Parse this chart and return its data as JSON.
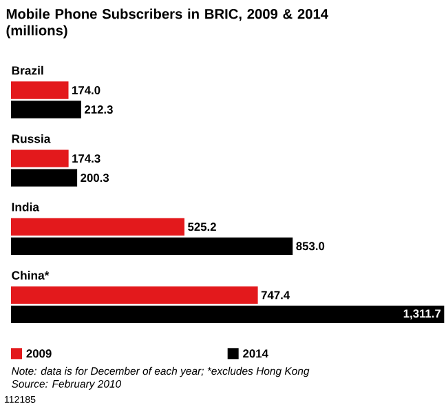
{
  "chart_data": {
    "type": "bar",
    "orientation": "horizontal",
    "title": "Mobile Phone Subscribers in BRIC, 2009 & 2014 (millions)",
    "categories": [
      "Brazil",
      "Russia",
      "India",
      "China*"
    ],
    "series": [
      {
        "name": "2009",
        "color": "#e3191c",
        "values": [
          174.0,
          174.3,
          525.2,
          747.4
        ],
        "value_labels": [
          "174.0",
          "174.3",
          "525.2",
          "747.4"
        ]
      },
      {
        "name": "2014",
        "color": "#000000",
        "values": [
          212.3,
          200.3,
          853.0,
          1311.7
        ],
        "value_labels": [
          "212.3",
          "200.3",
          "853.0",
          "1,311.7"
        ]
      }
    ],
    "legend": "bottom",
    "annotations": [
      "Note: data is for December of each year; *excludes Hong Kong",
      "Source: February 2010",
      "112185"
    ]
  }
}
